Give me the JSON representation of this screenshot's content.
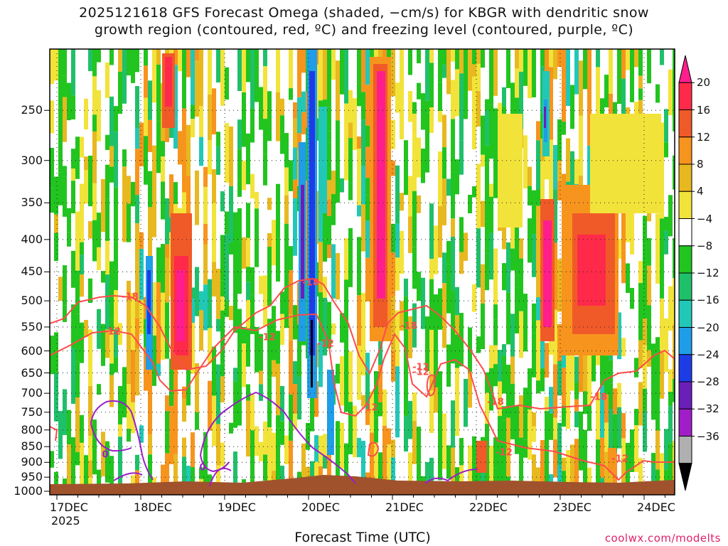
{
  "title_line1": "2025121618 GFS Forecast Omega (shaded, −cm/s) for KBGR with dendritic snow",
  "title_line2": "growth region (contoured, red, ºC) and freezing level (contoured, purple, ºC)",
  "credit": "coolwx.com/modelts",
  "chart_data": {
    "type": "heatmap",
    "title": "2025121618 GFS Forecast Omega (shaded, −cm/s) for KBGR with dendritic snow growth region (contoured, red, ºC) and freezing level (contoured, purple, ºC)",
    "xlabel": "Forecast Time (UTC)",
    "ylabel": "",
    "x_ticks": [
      "17DEC",
      "18DEC",
      "19DEC",
      "20DEC",
      "21DEC",
      "22DEC",
      "23DEC",
      "24DEC"
    ],
    "x_tick_year": "2025",
    "y_ticks": [
      250,
      300,
      350,
      400,
      450,
      500,
      550,
      600,
      650,
      700,
      750,
      800,
      850,
      900,
      950,
      1000
    ],
    "ylim": [
      1013,
      200
    ],
    "grid": true,
    "colorbar": {
      "levels": [
        20,
        16,
        12,
        8,
        4,
        -4,
        -8,
        -12,
        -16,
        -20,
        -24,
        -28,
        -32,
        -36
      ],
      "colors": [
        "#ff1e8c",
        "#ff2a4a",
        "#f05a28",
        "#f7941d",
        "#e8b820",
        "#f2e33a",
        "#ffffff",
        "#22c41f",
        "#1fc06a",
        "#21c8b8",
        "#1f9de8",
        "#1e3ce6",
        "#6a1fb8",
        "#a01ec8",
        "#b0b0b0",
        "#000000"
      ]
    },
    "contours": {
      "dendritic_labels": [
        "-18",
        "-12",
        "-18",
        "-12",
        "-18",
        "-12",
        "-12",
        "-12",
        "-18",
        "-12",
        "-18",
        "-12",
        "-12"
      ],
      "freezing_labels": [
        "0",
        "0"
      ]
    }
  }
}
